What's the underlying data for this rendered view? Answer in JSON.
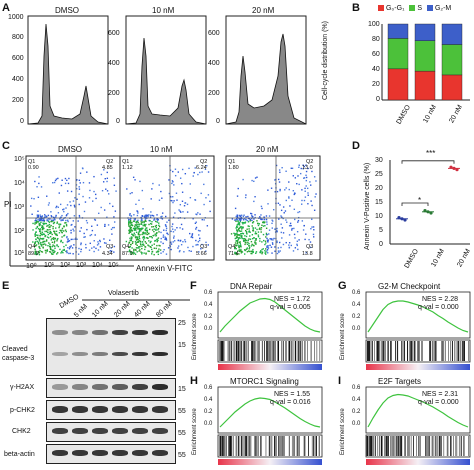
{
  "panels": {
    "A": "A",
    "B": "B",
    "C": "C",
    "D": "D",
    "E": "E",
    "F": "F",
    "G": "G",
    "H": "H",
    "I": "I"
  },
  "conditions": [
    "DMSO",
    "10 nM",
    "20 nM"
  ],
  "histogram": {
    "yticks": [
      "1000",
      "800",
      "600",
      "400",
      "200",
      "0"
    ],
    "ytick_vals": [
      1000,
      800,
      600,
      400,
      200,
      0
    ],
    "small_yticks": [
      "600",
      "400",
      "200",
      "0"
    ]
  },
  "chart_b": {
    "type": "bar",
    "stacked": true,
    "categories": [
      "DMSO",
      "10 nM",
      "20 nM"
    ],
    "series": [
      {
        "name": "G0-G1",
        "color": "#e8352e",
        "values": [
          41,
          38,
          33
        ]
      },
      {
        "name": "S",
        "color": "#4cc13a",
        "values": [
          40,
          40,
          40
        ]
      },
      {
        "name": "G2-M",
        "color": "#3d5fc9",
        "values": [
          19,
          22,
          27
        ]
      }
    ],
    "legend": [
      "G₀-G₁",
      "S",
      "G₂-M"
    ],
    "ylabel": "Cell-cycle distribution (%)",
    "yticks": [
      "100",
      "80",
      "60",
      "40",
      "20",
      "0"
    ],
    "ylim": [
      0,
      100
    ]
  },
  "chart_c": {
    "ylabel": "PI",
    "xlabel": "Annexin V-FITC",
    "yticks": [
      "10⁵",
      "10⁴",
      "10³",
      "10²",
      "10¹"
    ],
    "xticks": [
      "10⁰",
      "10¹",
      "10²",
      "10³",
      "10⁴",
      "10⁵"
    ],
    "quadrants": [
      {
        "q1": "Q1",
        "v1": "0.90",
        "q2": "Q2",
        "v2": "4.85",
        "q3": "Q3",
        "v3": "4.34",
        "q4": "Q4",
        "v4": "89.9"
      },
      {
        "q1": "Q1",
        "v1": "1.12",
        "q2": "Q2",
        "v2": "6.24",
        "q3": "Q3",
        "v3": "5.66",
        "q4": "Q4",
        "v4": "87.0"
      },
      {
        "q1": "Q1",
        "v1": "1.80",
        "q2": "Q2",
        "v2": "13.0",
        "q3": "Q3",
        "v3": "13.8",
        "q4": "Q4",
        "v4": "71.4"
      }
    ]
  },
  "chart_d": {
    "type": "scatter",
    "categories": [
      "DMSO",
      "10 nM",
      "20 nM"
    ],
    "values": [
      9,
      11.5,
      27
    ],
    "colors": [
      "#2a3c9e",
      "#2a7a35",
      "#d03040"
    ],
    "ylabel": "Annexin V-Positive cells (%)",
    "yticks": [
      "30",
      "25",
      "20",
      "15",
      "10",
      "5",
      "0"
    ],
    "ylim": [
      0,
      30
    ],
    "sig": [
      "*",
      "***"
    ]
  },
  "blot": {
    "top_labels": [
      "DMSO",
      "Volasertib"
    ],
    "conc": [
      "5 nM",
      "10 nM",
      "20 nM",
      "40 nM",
      "80 nM"
    ],
    "rows": [
      "Cleaved caspase-3",
      "γ-H2AX",
      "p-CHK2",
      "CHK2",
      "beta-actin"
    ],
    "mw": [
      "25",
      "15",
      "15",
      "55",
      "55",
      "55"
    ]
  },
  "gsea": [
    {
      "title": "DNA Repair",
      "nes": "NES = 1.72",
      "qval": "q-val = 0.005"
    },
    {
      "title": "G2-M Checkpoint",
      "nes": "NES = 2.28",
      "qval": "q-val = 0.000"
    },
    {
      "title": "MTORC1 Signaling",
      "nes": "NES = 1.55",
      "qval": "q-val = 0.016"
    },
    {
      "title": "E2F Targets",
      "nes": "NES = 2.31",
      "qval": "q-val = 0.000"
    }
  ],
  "gsea_axis": {
    "ylabel": "Enrichment score",
    "yticks": [
      "0.6",
      "0.4",
      "0.2",
      "0.0"
    ]
  }
}
